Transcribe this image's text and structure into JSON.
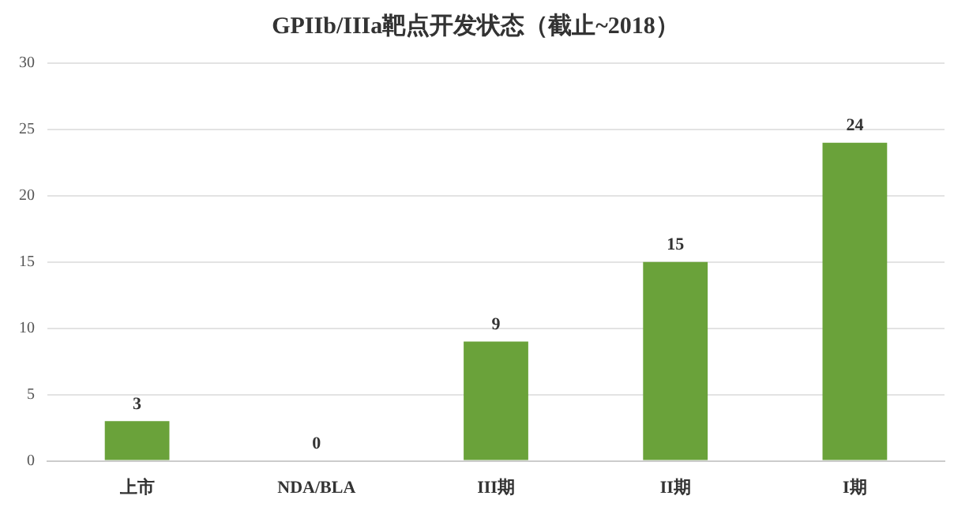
{
  "chart_data": {
    "type": "bar",
    "title": "GPIIb/IIIa靶点开发状态（截止~2018）",
    "categories": [
      "上市",
      "NDA/BLA",
      "III期",
      "II期",
      "I期"
    ],
    "values": [
      3,
      0,
      9,
      15,
      24
    ],
    "color": "#6aa23a",
    "ylim": [
      0,
      30
    ],
    "yticks": [
      0,
      5,
      10,
      15,
      20,
      25,
      30
    ],
    "grid": "y",
    "data_labels": true,
    "legend": false
  }
}
